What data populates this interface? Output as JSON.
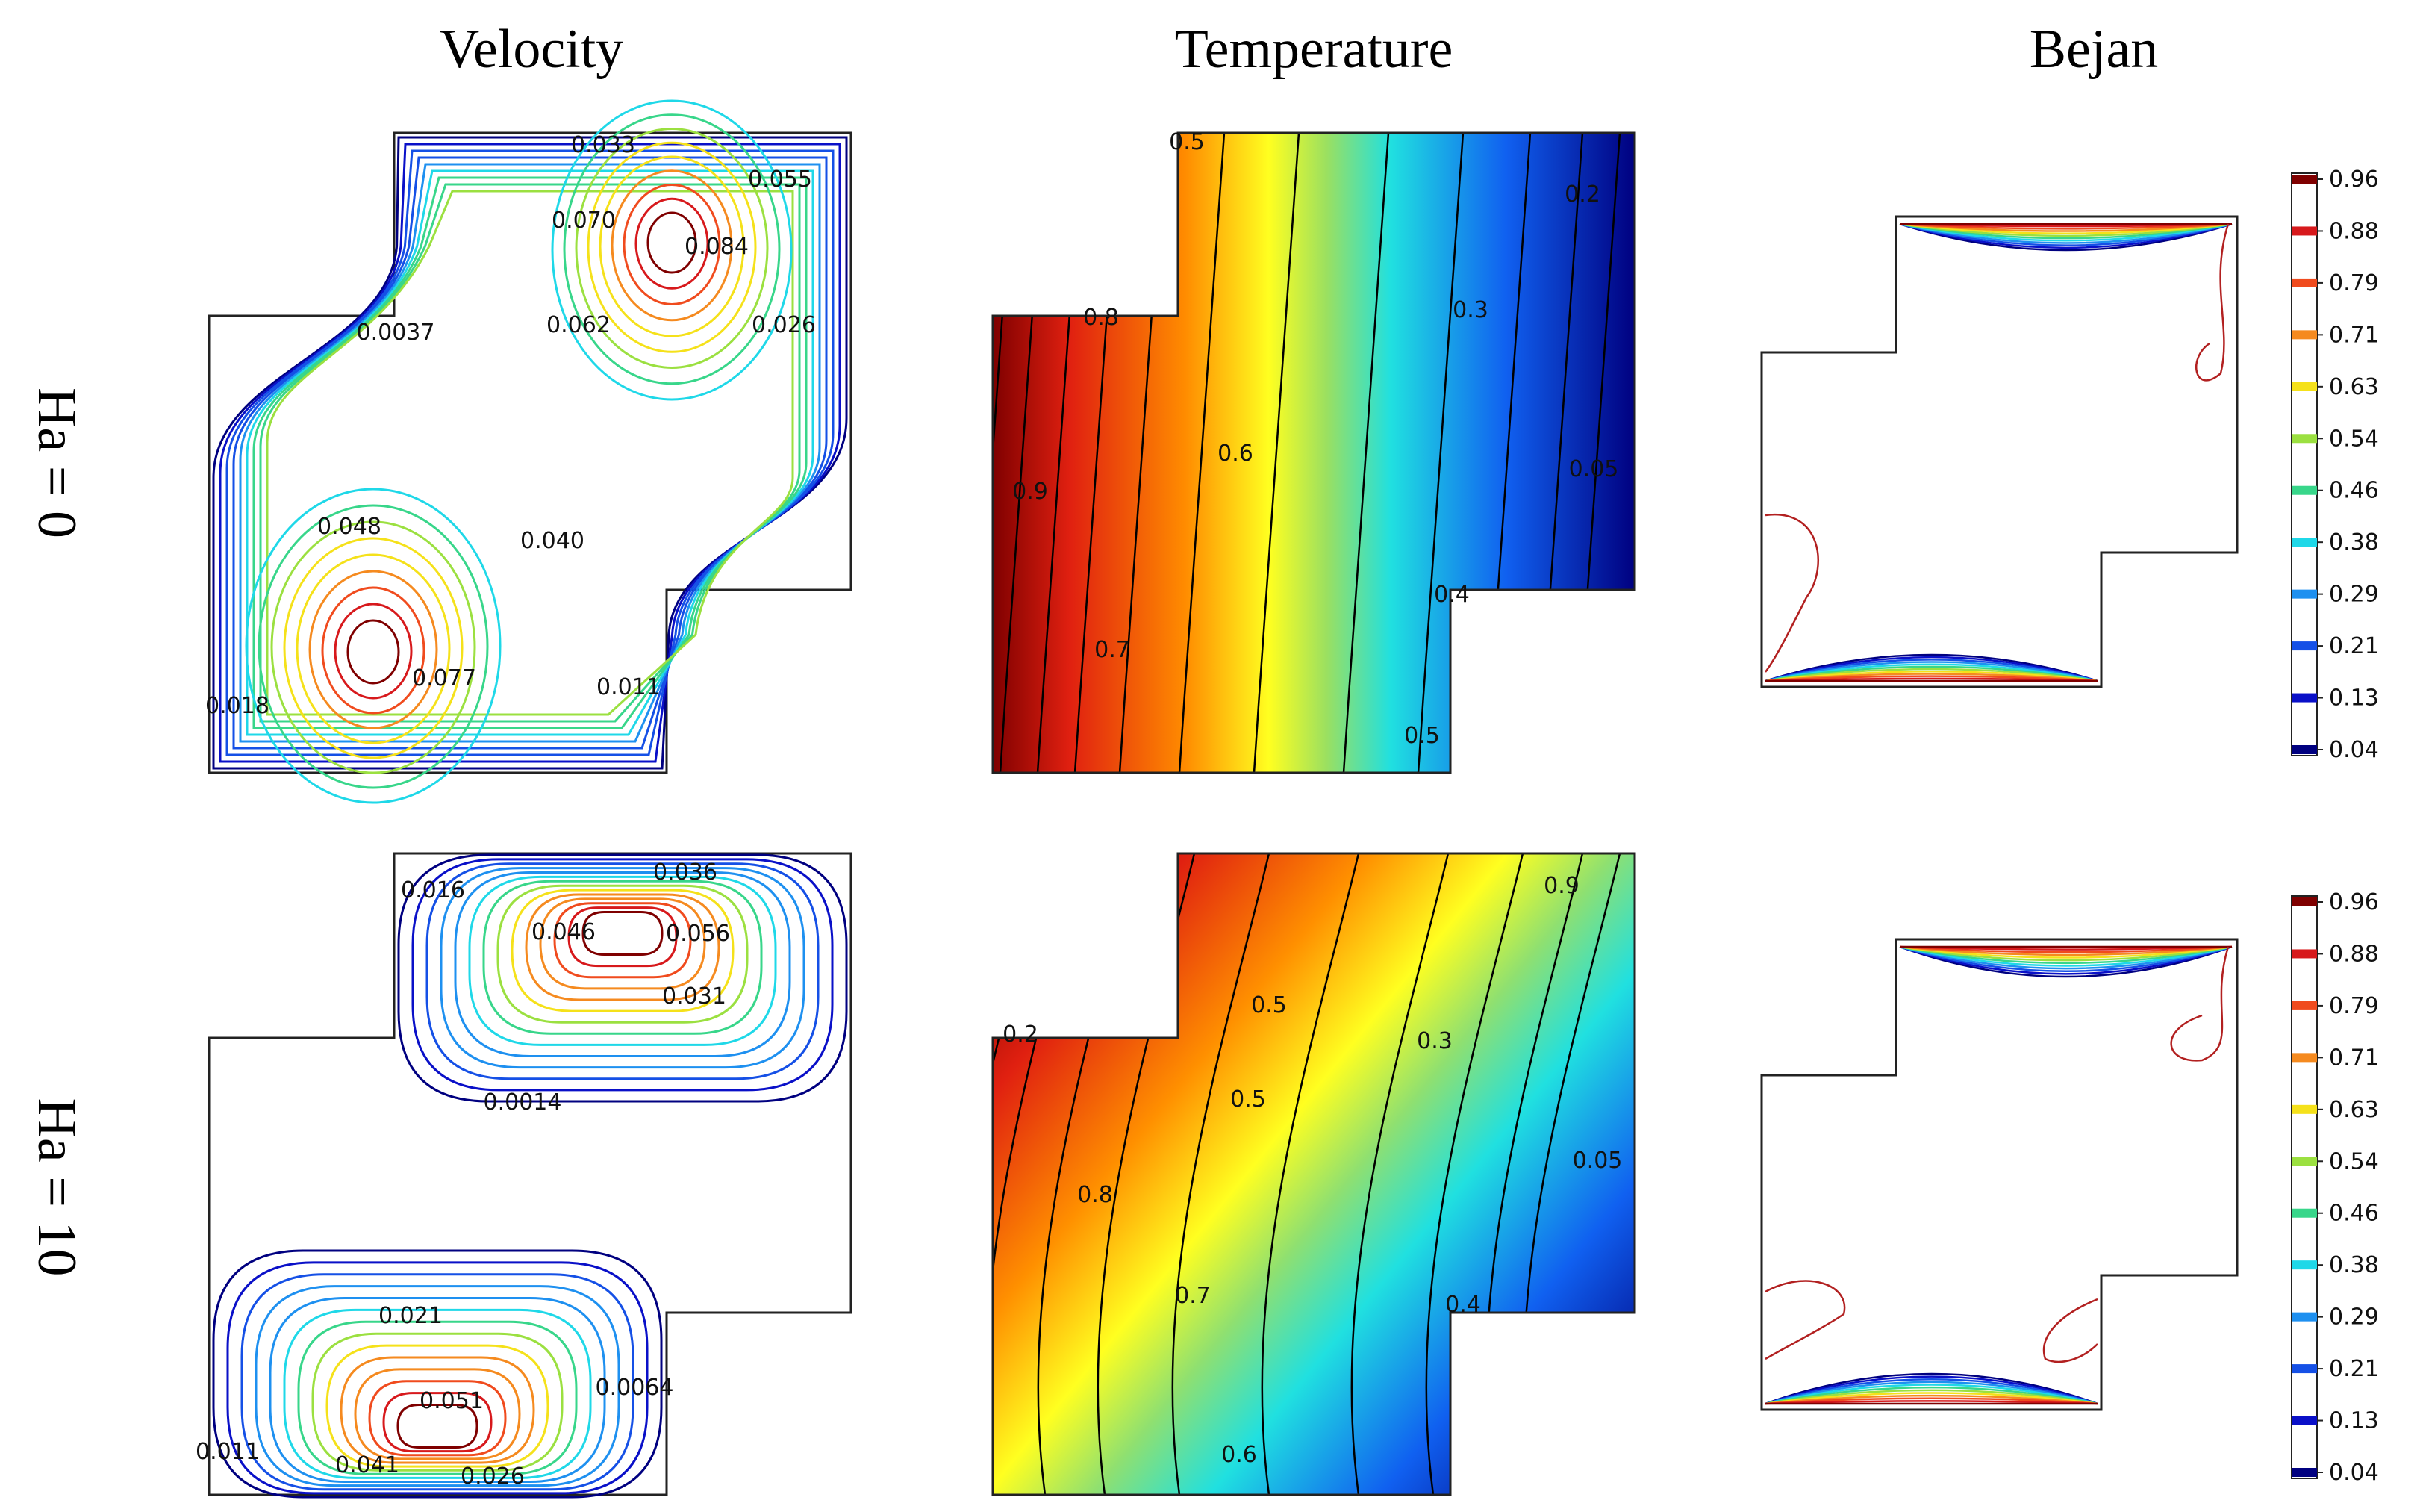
{
  "chart_data": {
    "type": "contour",
    "columns": [
      "Velocity",
      "Temperature",
      "Bejan"
    ],
    "rows": [
      "Ha = 0",
      "Ha = 10"
    ],
    "colorbar": {
      "ticks": [
        "0.96",
        "0.88",
        "0.79",
        "0.71",
        "0.63",
        "0.54",
        "0.46",
        "0.38",
        "0.29",
        "0.21",
        "0.13",
        "0.04"
      ],
      "colors": [
        "#7f0000",
        "#d7191c",
        "#f04b1e",
        "#f58a1f",
        "#f5e11a",
        "#9be040",
        "#38d68a",
        "#1fd8e8",
        "#1e90f0",
        "#1550e6",
        "#0a10c8",
        "#000080"
      ]
    },
    "panels": [
      {
        "row": "Ha = 0",
        "column": "Velocity",
        "labels": [
          "0.033",
          "0.055",
          "0.070",
          "0.084",
          "0.0037",
          "0.062",
          "0.026",
          "0.048",
          "0.040",
          "0.077",
          "0.018",
          "0.011"
        ]
      },
      {
        "row": "Ha = 0",
        "column": "Temperature",
        "labels": [
          "0.5",
          "0.2",
          "0.8",
          "0.3",
          "0.6",
          "0.9",
          "0.05",
          "0.4",
          "0.7",
          "0.5"
        ]
      },
      {
        "row": "Ha = 10",
        "column": "Velocity",
        "labels": [
          "0.036",
          "0.016",
          "0.046",
          "0.056",
          "0.031",
          "0.0014",
          "0.021",
          "0.051",
          "0.0064",
          "0.011",
          "0.041",
          "0.026"
        ]
      },
      {
        "row": "Ha = 10",
        "column": "Temperature",
        "labels": [
          "0.2",
          "0.9",
          "0.5",
          "0.3",
          "0.5",
          "0.8",
          "0.05",
          "0.7",
          "0.4",
          "0.6"
        ]
      }
    ]
  }
}
